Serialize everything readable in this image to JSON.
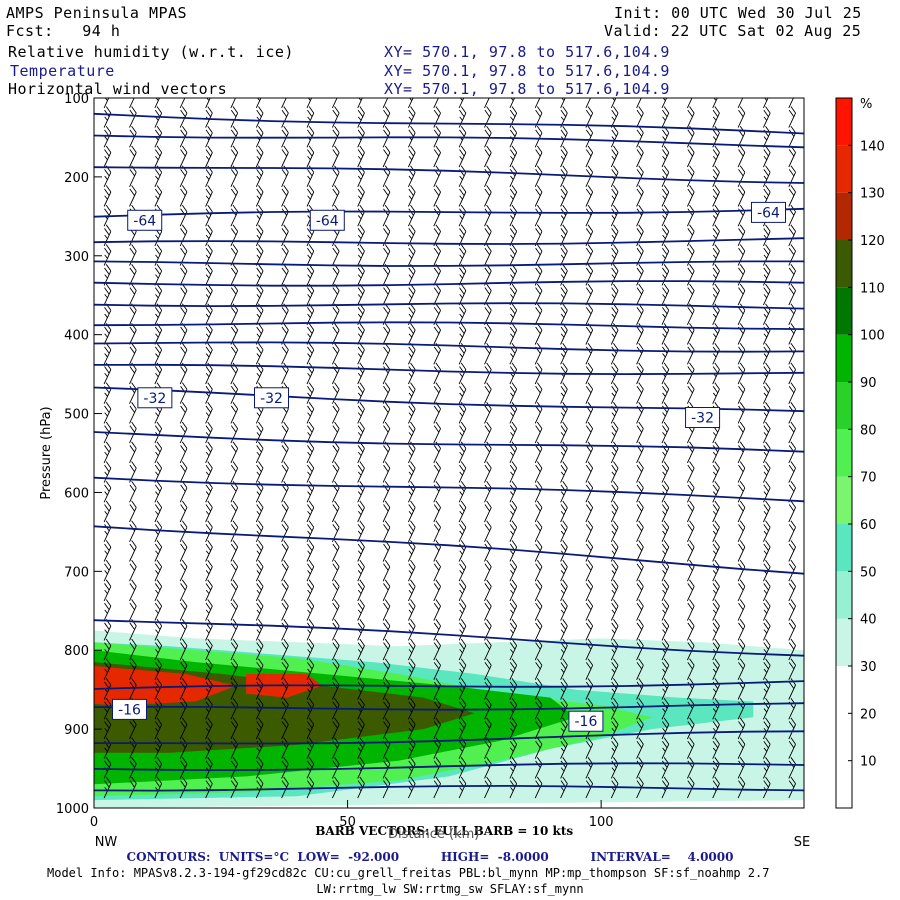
{
  "header": {
    "model_name": "AMPS Peninsula MPAS",
    "fcst": "Fcst:   94 h",
    "init": "Init: 00 UTC Wed 30 Jul 25",
    "valid": "Valid: 22 UTC Sat 02 Aug 25",
    "fields": [
      {
        "name": "Relative humidity (w.r.t. ice)",
        "xy": "XY= 570.1, 97.8 to 517.6,104.9"
      },
      {
        "name": "Temperature",
        "xy": "XY= 570.1, 97.8 to 517.6,104.9"
      },
      {
        "name": "Horizontal wind vectors",
        "xy": "XY= 570.1, 97.8 to 517.6,104.9"
      }
    ]
  },
  "chart_data": {
    "type": "heatmap",
    "xlabel": "Distance (km)",
    "ylabel": "Pressure (hPa)",
    "xlim": [
      0,
      140
    ],
    "ylim": [
      1000,
      100
    ],
    "x_ticks": [
      0,
      50,
      100
    ],
    "y_ticks": [
      100,
      200,
      300,
      400,
      500,
      600,
      700,
      800,
      900,
      1000
    ],
    "x_end_labels": {
      "left": "NW",
      "right": "SE"
    },
    "colorbar": {
      "unit": "%",
      "levels": [
        0,
        10,
        20,
        30,
        40,
        50,
        60,
        70,
        80,
        90,
        100,
        110,
        120,
        130,
        140,
        150
      ],
      "tick_labels": [
        10,
        20,
        30,
        40,
        50,
        60,
        70,
        80,
        90,
        100,
        110,
        120,
        130,
        140
      ],
      "colors": [
        "#ffffff",
        "#ffffff",
        "#ffffff",
        "#c8f5e6",
        "#96f0d2",
        "#5ae6be",
        "#7cf56e",
        "#50f050",
        "#28d228",
        "#00b400",
        "#007800",
        "#3c5a00",
        "#b42800",
        "#e62800",
        "#ff1400"
      ]
    },
    "rh_regions": [
      {
        "level": 30,
        "points": [
          [
            0,
            775
          ],
          [
            20,
            785
          ],
          [
            40,
            790
          ],
          [
            60,
            795
          ],
          [
            80,
            790
          ],
          [
            100,
            785
          ],
          [
            120,
            790
          ],
          [
            140,
            800
          ],
          [
            140,
            990
          ],
          [
            0,
            1000
          ]
        ]
      },
      {
        "level": 50,
        "points": [
          [
            0,
            790
          ],
          [
            15,
            795
          ],
          [
            35,
            805
          ],
          [
            55,
            815
          ],
          [
            75,
            830
          ],
          [
            95,
            850
          ],
          [
            115,
            860
          ],
          [
            130,
            865
          ],
          [
            130,
            885
          ],
          [
            110,
            900
          ],
          [
            90,
            925
          ],
          [
            70,
            960
          ],
          [
            40,
            985
          ],
          [
            0,
            990
          ]
        ]
      },
      {
        "level": 70,
        "points": [
          [
            0,
            790
          ],
          [
            20,
            800
          ],
          [
            40,
            810
          ],
          [
            60,
            830
          ],
          [
            80,
            855
          ],
          [
            100,
            870
          ],
          [
            110,
            885
          ],
          [
            100,
            910
          ],
          [
            80,
            940
          ],
          [
            60,
            965
          ],
          [
            30,
            980
          ],
          [
            0,
            985
          ]
        ]
      },
      {
        "level": 90,
        "points": [
          [
            0,
            800
          ],
          [
            20,
            815
          ],
          [
            45,
            830
          ],
          [
            70,
            845
          ],
          [
            90,
            860
          ],
          [
            95,
            885
          ],
          [
            80,
            915
          ],
          [
            60,
            940
          ],
          [
            30,
            960
          ],
          [
            0,
            970
          ]
        ]
      },
      {
        "level": 110,
        "points": [
          [
            0,
            815
          ],
          [
            25,
            830
          ],
          [
            45,
            845
          ],
          [
            65,
            860
          ],
          [
            75,
            880
          ],
          [
            65,
            900
          ],
          [
            40,
            920
          ],
          [
            15,
            930
          ],
          [
            0,
            930
          ]
        ]
      },
      {
        "level": 130,
        "points": [
          [
            0,
            820
          ],
          [
            18,
            830
          ],
          [
            28,
            845
          ],
          [
            20,
            865
          ],
          [
            5,
            870
          ],
          [
            0,
            868
          ]
        ]
      },
      {
        "level": 130,
        "points": [
          [
            30,
            830
          ],
          [
            42,
            830
          ],
          [
            45,
            845
          ],
          [
            38,
            860
          ],
          [
            30,
            855
          ]
        ]
      }
    ],
    "temperature_contours": {
      "units": "°C",
      "low": "-92.000",
      "high": "-8.0000",
      "interval": "4.0000",
      "isotherms": [
        {
          "p_left": 120,
          "p_right": 145
        },
        {
          "p_left": 145,
          "p_right": 160
        },
        {
          "p_left": 185,
          "p_right": 205
        },
        {
          "p_left": 250,
          "p_right": 240
        },
        {
          "p_left": 285,
          "p_right": 280
        },
        {
          "p_left": 310,
          "p_right": 310
        },
        {
          "p_left": 335,
          "p_right": 335
        },
        {
          "p_left": 360,
          "p_right": 365
        },
        {
          "p_left": 385,
          "p_right": 390
        },
        {
          "p_left": 410,
          "p_right": 420
        },
        {
          "p_left": 440,
          "p_right": 450
        },
        {
          "p_left": 470,
          "p_right": 500
        },
        {
          "p_left": 525,
          "p_right": 550
        },
        {
          "p_left": 580,
          "p_right": 610
        },
        {
          "p_left": 640,
          "p_right": 700
        },
        {
          "p_left": 760,
          "p_right": 805
        },
        {
          "p_left": 850,
          "p_right": 840
        },
        {
          "p_left": 875,
          "p_right": 870
        },
        {
          "p_left": 920,
          "p_right": 905
        },
        {
          "p_left": 950,
          "p_right": 945
        },
        {
          "p_left": 975,
          "p_right": 975
        }
      ],
      "labels": [
        {
          "text": "-64",
          "x": 10,
          "p": 255
        },
        {
          "text": "-64",
          "x": 46,
          "p": 255
        },
        {
          "text": "-64",
          "x": 133,
          "p": 245
        },
        {
          "text": "-32",
          "x": 12,
          "p": 480
        },
        {
          "text": "-32",
          "x": 35,
          "p": 480
        },
        {
          "text": "-32",
          "x": 120,
          "p": 505
        },
        {
          "text": "-16",
          "x": 7,
          "p": 875
        },
        {
          "text": "-16",
          "x": 97,
          "p": 890
        }
      ]
    },
    "wind_barbs": {
      "x_spacing_km": 5,
      "p_spacing_hpa": 25
    }
  },
  "footer": {
    "barb_text": "BARB VECTORS: FULL BARB = 10 kts",
    "xlabel_overlay": "Distance (km)",
    "contours_line": "CONTOURS:  UNITS=°C  LOW=  -92.000          HIGH=  -8.0000          INTERVAL=    4.0000",
    "model_info": "Model Info: MPASv8.2.3-194-gf29cd82c CU:cu_grell_freitas PBL:bl_mynn MP:mp_thompson SF:sf_noahmp 2.7",
    "model_info2": "LW:rrtmg_lw SW:rrtmg_sw SFLAY:sf_mynn"
  }
}
